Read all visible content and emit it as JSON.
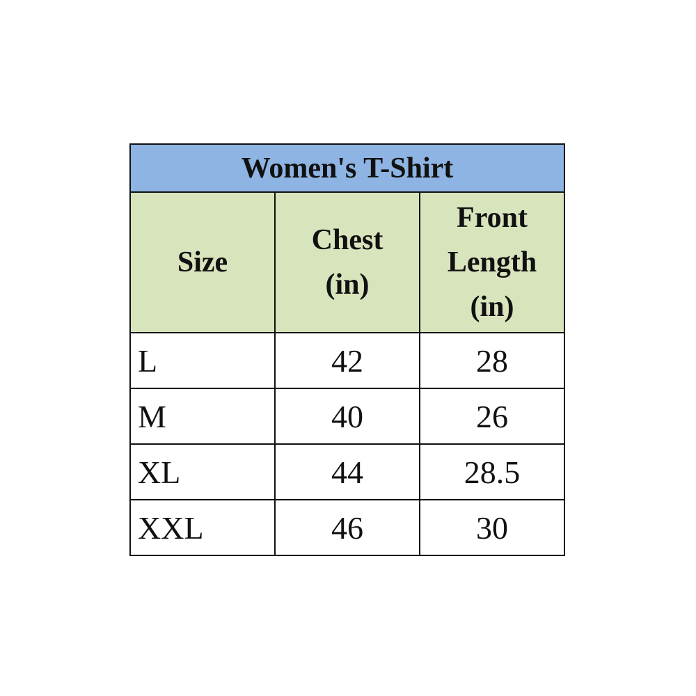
{
  "table": {
    "title": "Women's T-Shirt",
    "headers": [
      "Size",
      "Chest (in)",
      "Front Length (in)"
    ],
    "rows": [
      {
        "size": "L",
        "chest": "42",
        "front_length": "28"
      },
      {
        "size": "M",
        "chest": "40",
        "front_length": "26"
      },
      {
        "size": "XL",
        "chest": "44",
        "front_length": "28.5"
      },
      {
        "size": "XXL",
        "chest": "46",
        "front_length": "30"
      }
    ],
    "colors": {
      "title_bg": "#8DB4E2",
      "header_bg": "#D8E4BC",
      "border": "#111111"
    }
  }
}
